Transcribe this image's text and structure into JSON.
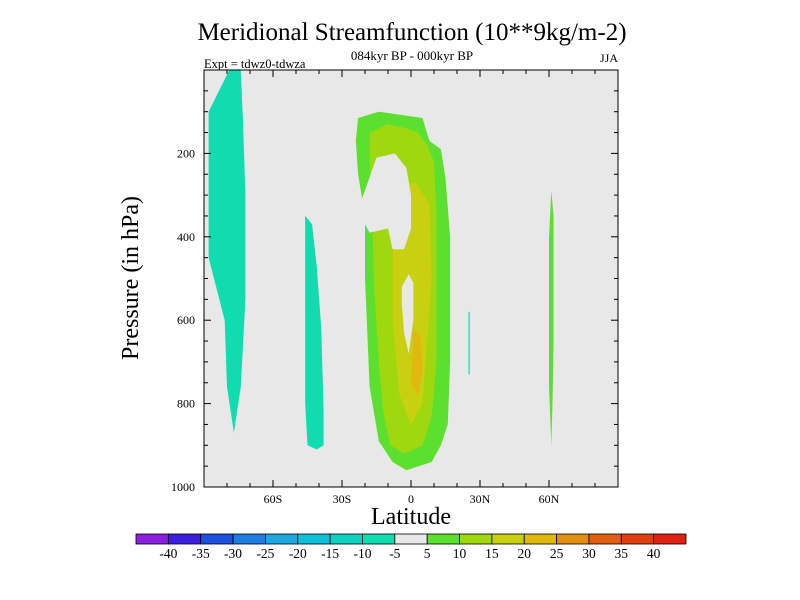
{
  "chart_data": {
    "type": "contour",
    "title": "Meridional Streamfunction (10**9kg/m-2)",
    "subtitle": "084kyr BP - 000kyr BP",
    "left_annotation": "Expt = tdwz0-tdwza",
    "season": "JJA",
    "xlabel": "Latitude",
    "ylabel": "Pressure (in hPa)",
    "xlim": [
      -90,
      90
    ],
    "ylim": [
      1000,
      0
    ],
    "x_ticks": [
      {
        "value": -60,
        "label": "60S"
      },
      {
        "value": -30,
        "label": "30S"
      },
      {
        "value": 0,
        "label": "0"
      },
      {
        "value": 30,
        "label": "30N"
      },
      {
        "value": 60,
        "label": "60N"
      }
    ],
    "y_ticks": [
      {
        "value": 200,
        "label": "200"
      },
      {
        "value": 400,
        "label": "400"
      },
      {
        "value": 600,
        "label": "600"
      },
      {
        "value": 800,
        "label": "800"
      },
      {
        "value": 1000,
        "label": "1000"
      }
    ],
    "colorbar": {
      "labels": [
        "-40",
        "-35",
        "-30",
        "-25",
        "-20",
        "-15",
        "-10",
        "-5",
        "5",
        "10",
        "15",
        "20",
        "25",
        "30",
        "35",
        "40"
      ],
      "colors": [
        "#8a1fe0",
        "#3a1fe0",
        "#1f4fe0",
        "#1f7fe0",
        "#1fa8e0",
        "#10c0d8",
        "#10d0c0",
        "#10dcb0",
        "#e8e8e8",
        "#5ce030",
        "#a0d810",
        "#c8d010",
        "#e0b810",
        "#e09010",
        "#e06010",
        "#e04010",
        "#e02010"
      ]
    },
    "fill_regions": [
      {
        "level": "-10 to -5",
        "color": "#10dcb0",
        "points": [
          [
            -79,
            0
          ],
          [
            -74,
            0
          ],
          [
            -73,
            130
          ],
          [
            -72,
            300
          ],
          [
            -72,
            550
          ],
          [
            -74,
            760
          ],
          [
            -77,
            870
          ],
          [
            -80,
            760
          ],
          [
            -81,
            600
          ],
          [
            -88,
            450
          ],
          [
            -88,
            100
          ]
        ]
      },
      {
        "level": "-10 to -5",
        "color": "#10dcb0",
        "points": [
          [
            -46,
            350
          ],
          [
            -43,
            370
          ],
          [
            -41,
            470
          ],
          [
            -39,
            620
          ],
          [
            -38,
            820
          ],
          [
            -38,
            900
          ],
          [
            -41,
            910
          ],
          [
            -45,
            900
          ],
          [
            -46,
            800
          ],
          [
            -46,
            550
          ]
        ]
      },
      {
        "level": "-10 to -5",
        "color": "#10dcb0",
        "points": [
          [
            25,
            580
          ],
          [
            25.5,
            580
          ],
          [
            25.5,
            730
          ],
          [
            25,
            730
          ]
        ]
      },
      {
        "level": "5 to 10",
        "color": "#5ce030",
        "points": [
          [
            -23,
            115
          ],
          [
            -14,
            100
          ],
          [
            5,
            115
          ],
          [
            8,
            170
          ],
          [
            13,
            190
          ],
          [
            15,
            260
          ],
          [
            17,
            400
          ],
          [
            17,
            700
          ],
          [
            16,
            850
          ],
          [
            13,
            900
          ],
          [
            9,
            940
          ],
          [
            -2,
            960
          ],
          [
            -8,
            940
          ],
          [
            -14,
            890
          ],
          [
            -18,
            760
          ],
          [
            -20,
            500
          ],
          [
            -20,
            350
          ],
          [
            -23,
            250
          ],
          [
            -24,
            170
          ]
        ]
      },
      {
        "level": "5 to 10",
        "color": "#5ce030",
        "points": [
          [
            61,
            290
          ],
          [
            62,
            350
          ],
          [
            62,
            650
          ],
          [
            61.5,
            800
          ],
          [
            61,
            900
          ],
          [
            60,
            760
          ],
          [
            60,
            400
          ]
        ]
      },
      {
        "level": "10 to 15",
        "color": "#a0d810",
        "points": [
          [
            -18,
            150
          ],
          [
            -10,
            130
          ],
          [
            -2,
            140
          ],
          [
            3,
            150
          ],
          [
            7,
            180
          ],
          [
            10,
            220
          ],
          [
            11,
            330
          ],
          [
            11,
            700
          ],
          [
            9,
            830
          ],
          [
            5,
            900
          ],
          [
            -3,
            920
          ],
          [
            -9,
            900
          ],
          [
            -12,
            820
          ],
          [
            -14,
            700
          ],
          [
            -16,
            520
          ],
          [
            -17,
            320
          ],
          [
            -18,
            200
          ]
        ]
      },
      {
        "level": "15 to 20",
        "color": "#c8d010",
        "points": [
          [
            -5,
            280
          ],
          [
            2,
            270
          ],
          [
            8,
            320
          ],
          [
            9,
            500
          ],
          [
            7,
            650
          ],
          [
            5,
            800
          ],
          [
            0,
            850
          ],
          [
            -5,
            780
          ],
          [
            -8,
            600
          ],
          [
            -8,
            420
          ]
        ]
      },
      {
        "level": "20 to 25",
        "color": "#e0b810",
        "points": [
          [
            1,
            620
          ],
          [
            4,
            640
          ],
          [
            5,
            720
          ],
          [
            3,
            780
          ],
          [
            0,
            750
          ]
        ]
      }
    ],
    "masked_regions": [
      {
        "color": "#e8e8e8",
        "points": [
          [
            -22,
            320
          ],
          [
            -15,
            210
          ],
          [
            -7,
            200
          ],
          [
            -2,
            235
          ],
          [
            0,
            300
          ],
          [
            0,
            380
          ],
          [
            -3,
            430
          ],
          [
            -8,
            430
          ],
          [
            -10,
            380
          ],
          [
            -18,
            390
          ],
          [
            -22,
            350
          ]
        ]
      },
      {
        "color": "#e8e8e8",
        "points": [
          [
            -4,
            520
          ],
          [
            -1,
            490
          ],
          [
            1,
            510
          ],
          [
            1,
            600
          ],
          [
            -1,
            680
          ],
          [
            -3,
            630
          ],
          [
            -4,
            560
          ]
        ]
      }
    ]
  }
}
